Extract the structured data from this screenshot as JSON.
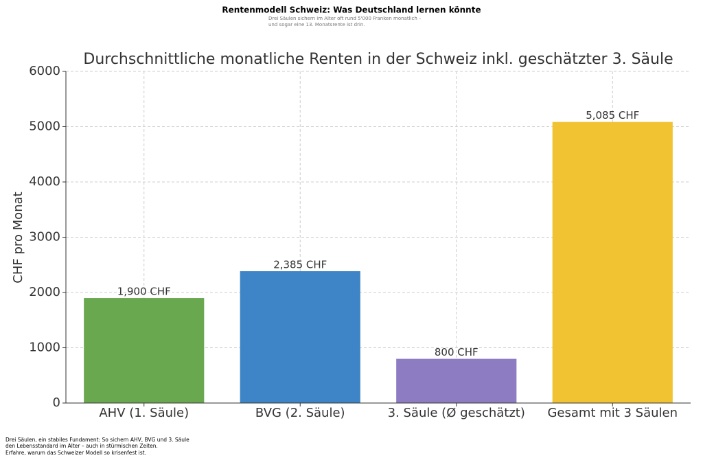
{
  "header": {
    "title": "Rentenmodell Schweiz: Was Deutschland lernen könnte",
    "subtitle": [
      "Drei Säulen sichern im Alter oft rund 5'000 Franken monatlich –",
      "und sogar eine 13. Monatsrente ist drin."
    ]
  },
  "chart_data": {
    "type": "bar",
    "title": "Durchschnittliche monatliche Renten in der Schweiz inkl. geschätzter 3. Säule",
    "y_label": "CHF pro Monat",
    "categories": [
      "AHV (1. Säule)",
      "BVG (2. Säule)",
      "3. Säule (Ø geschätzt)",
      "Gesamt mit 3 Säulen"
    ],
    "values": [
      1900,
      2385,
      800,
      5085
    ],
    "value_labels": [
      "1,900 CHF",
      "2,385 CHF",
      "800 CHF",
      "5,085 CHF"
    ],
    "colors": [
      "#6aa84f",
      "#3d85c6",
      "#8e7cc3",
      "#f1c232"
    ],
    "ylim": [
      0,
      6000
    ],
    "yticks": [
      0,
      1000,
      2000,
      3000,
      4000,
      5000,
      6000
    ],
    "grid": true
  },
  "footer": [
    "Drei Säulen, ein stabiles Fundament: So sichern AHV, BVG und 3. Säule",
    "den Lebensstandard im Alter – auch in stürmischen Zeiten.",
    "Erfahre, warum das Schweizer Modell so krisenfest ist."
  ]
}
